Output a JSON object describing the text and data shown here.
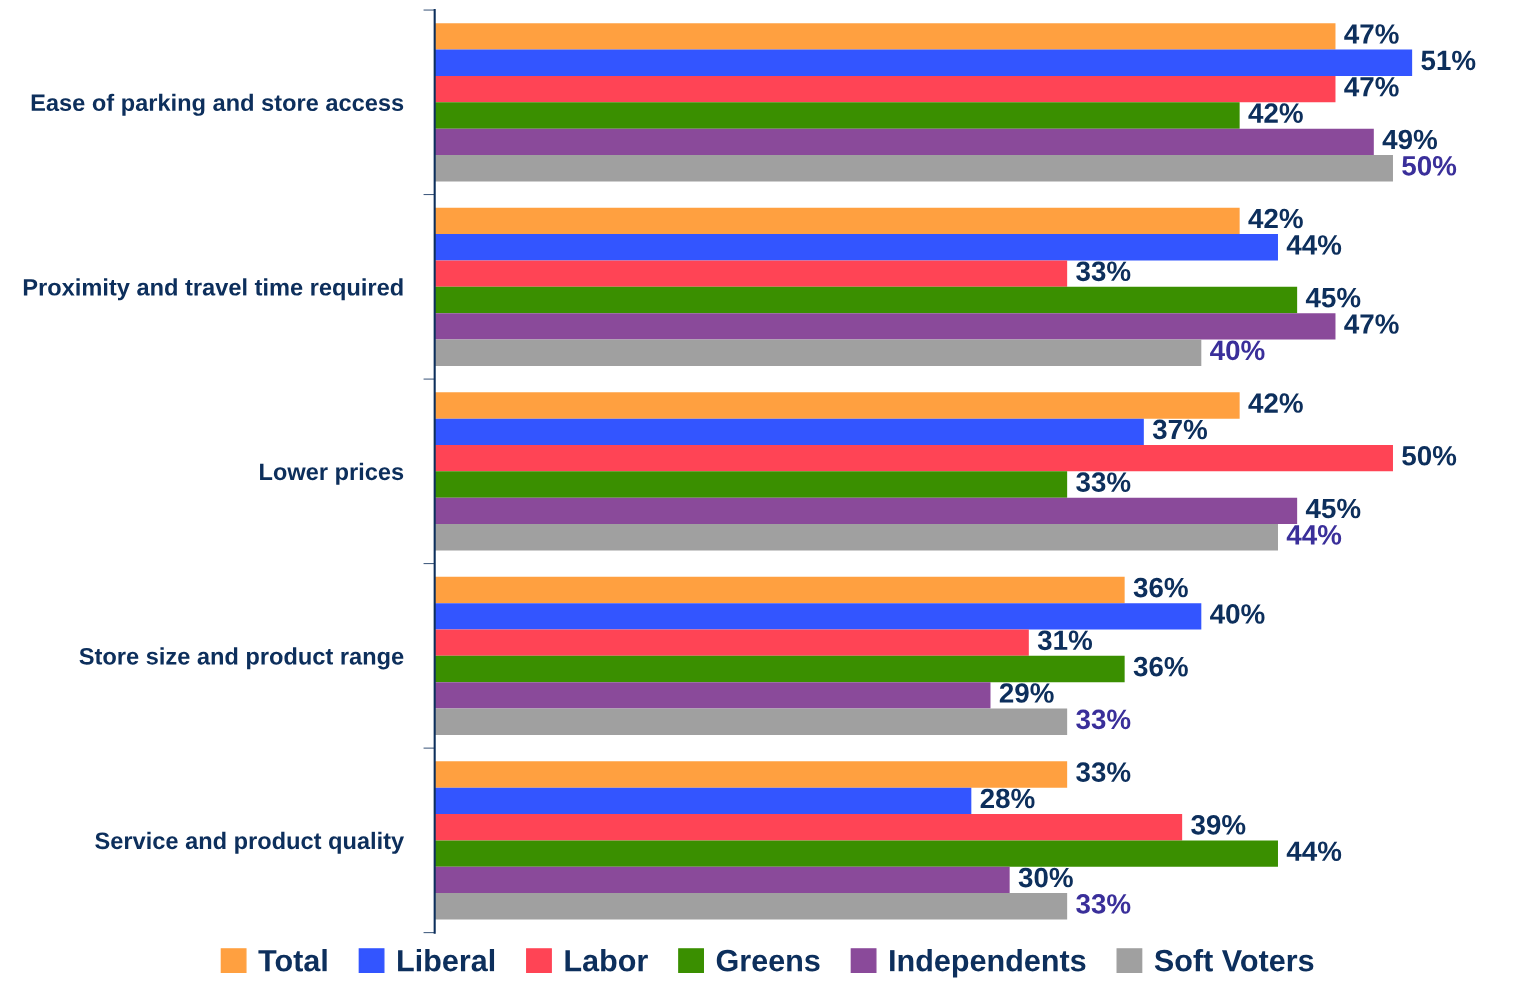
{
  "chart_data": {
    "type": "bar",
    "orientation": "horizontal",
    "categories": [
      "Ease of parking and store access",
      "Proximity and travel time required",
      "Lower prices",
      "Store size and product range",
      "Service and product quality"
    ],
    "series": [
      {
        "name": "Total",
        "color": "#ffa040",
        "values": [
          47,
          42,
          42,
          36,
          33
        ],
        "value_labels": [
          "47%",
          "42%",
          "42%",
          "36%",
          "33%"
        ]
      },
      {
        "name": "Liberal",
        "color": "#3355ff",
        "values": [
          51,
          44,
          37,
          40,
          28
        ],
        "value_labels": [
          "51%",
          "44%",
          "37%",
          "40%",
          "28%"
        ]
      },
      {
        "name": "Labor",
        "color": "#ff4455",
        "values": [
          47,
          33,
          50,
          31,
          39
        ],
        "value_labels": [
          "47%",
          "33%",
          "50%",
          "31%",
          "39%"
        ]
      },
      {
        "name": "Greens",
        "color": "#3a8f00",
        "values": [
          42,
          45,
          33,
          36,
          44
        ],
        "value_labels": [
          "42%",
          "45%",
          "33%",
          "36%",
          "44%"
        ]
      },
      {
        "name": "Independents",
        "color": "#8a4a9a",
        "values": [
          49,
          47,
          45,
          29,
          30
        ],
        "value_labels": [
          "49%",
          "47%",
          "45%",
          "29%",
          "30%"
        ]
      },
      {
        "name": "Soft Voters",
        "color": "#a0a0a0",
        "values": [
          50,
          40,
          44,
          33,
          33
        ],
        "value_labels": [
          "50%",
          "40%",
          "44%",
          "33%",
          "33%"
        ]
      }
    ],
    "legend": "bottom"
  }
}
